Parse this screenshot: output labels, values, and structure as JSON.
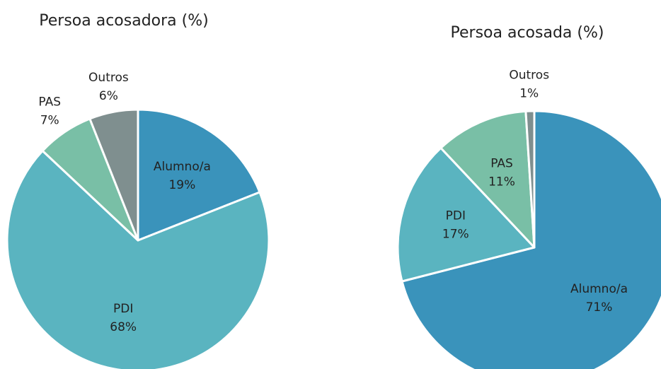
{
  "chart_data": [
    {
      "type": "pie",
      "title": "Persoa acosadora (%)",
      "categories": [
        "Alumno/a",
        "PDI",
        "PAS",
        "Outros"
      ],
      "values": [
        19,
        68,
        7,
        6
      ],
      "value_labels": [
        "19%",
        "68%",
        "7%",
        "6%"
      ],
      "colors": [
        "#3a93bb",
        "#5ab4c0",
        "#79bfa6",
        "#7f8f8f"
      ]
    },
    {
      "type": "pie",
      "title": "Persoa acosada (%)",
      "categories": [
        "Alumno/a",
        "PDI",
        "PAS",
        "Outros"
      ],
      "values": [
        71,
        17,
        11,
        1
      ],
      "value_labels": [
        "71%",
        "17%",
        "11%",
        "1%"
      ],
      "colors": [
        "#3a93bb",
        "#5ab4c0",
        "#79bfa6",
        "#7f8f8f"
      ]
    }
  ]
}
